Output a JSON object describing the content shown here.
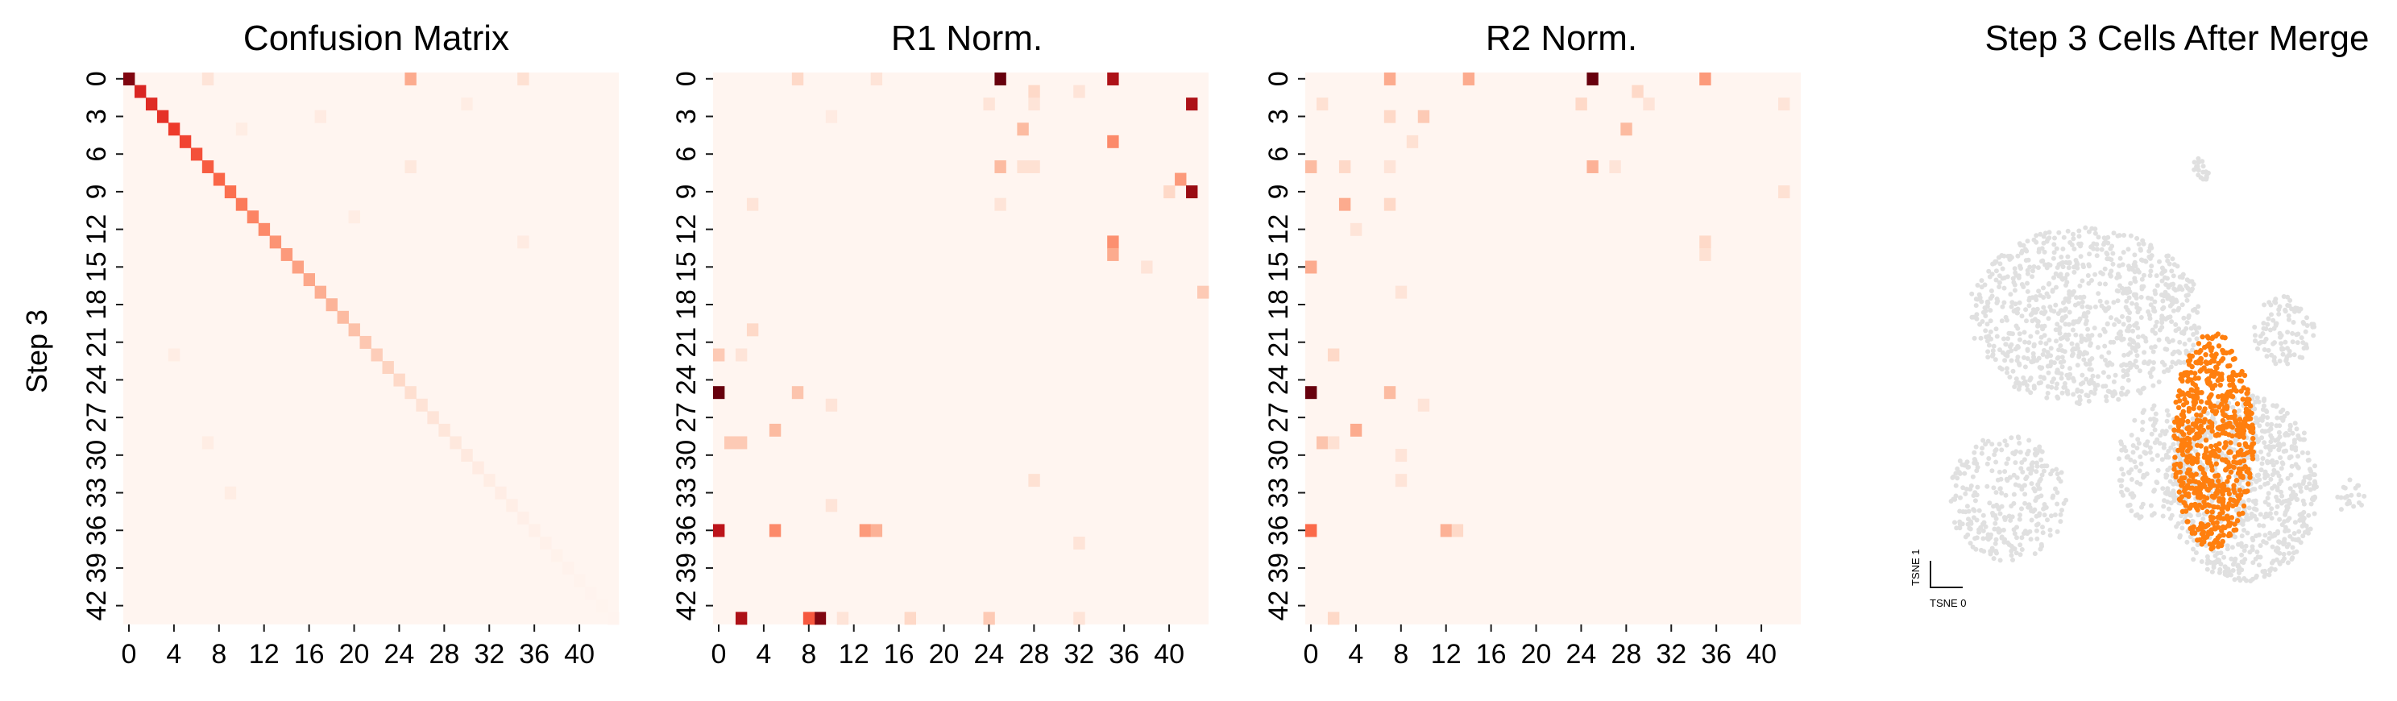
{
  "chart_data": [
    {
      "type": "heatmap",
      "title": "Confusion Matrix",
      "ylabel": "Step 3",
      "xlabel": "",
      "n_rows": 44,
      "n_cols": 44,
      "x_tick_labels": [
        "0",
        "4",
        "8",
        "12",
        "16",
        "20",
        "24",
        "28",
        "32",
        "36",
        "40"
      ],
      "y_tick_labels": [
        "0",
        "3",
        "6",
        "9",
        "12",
        "15",
        "18",
        "21",
        "24",
        "27",
        "30",
        "33",
        "36",
        "39",
        "42"
      ],
      "colormap": [
        "#fff5f0",
        "#fee0d2",
        "#fcbba1",
        "#fc9272",
        "#fb6a4a",
        "#ef3b2c",
        "#cb181d",
        "#a50f15",
        "#67000d"
      ],
      "cells": [
        [
          0,
          0,
          0.95
        ],
        [
          1,
          1,
          0.7
        ],
        [
          2,
          2,
          0.68
        ],
        [
          3,
          3,
          0.66
        ],
        [
          4,
          4,
          0.63
        ],
        [
          5,
          5,
          0.6
        ],
        [
          6,
          6,
          0.57
        ],
        [
          7,
          7,
          0.54
        ],
        [
          8,
          8,
          0.51
        ],
        [
          9,
          9,
          0.48
        ],
        [
          10,
          10,
          0.45
        ],
        [
          11,
          11,
          0.42
        ],
        [
          12,
          12,
          0.4
        ],
        [
          13,
          13,
          0.37
        ],
        [
          14,
          14,
          0.35
        ],
        [
          15,
          15,
          0.33
        ],
        [
          16,
          16,
          0.31
        ],
        [
          17,
          17,
          0.29
        ],
        [
          18,
          18,
          0.27
        ],
        [
          19,
          19,
          0.25
        ],
        [
          20,
          20,
          0.23
        ],
        [
          21,
          21,
          0.21
        ],
        [
          22,
          22,
          0.19
        ],
        [
          23,
          23,
          0.17
        ],
        [
          24,
          24,
          0.15
        ],
        [
          25,
          25,
          0.13
        ],
        [
          26,
          26,
          0.11
        ],
        [
          27,
          27,
          0.1
        ],
        [
          28,
          28,
          0.09
        ],
        [
          29,
          29,
          0.08
        ],
        [
          30,
          30,
          0.07
        ],
        [
          31,
          31,
          0.06
        ],
        [
          32,
          32,
          0.05
        ],
        [
          33,
          33,
          0.045
        ],
        [
          34,
          34,
          0.04
        ],
        [
          35,
          35,
          0.035
        ],
        [
          36,
          36,
          0.03
        ],
        [
          37,
          37,
          0.025
        ],
        [
          38,
          38,
          0.02
        ],
        [
          39,
          39,
          0.015
        ],
        [
          40,
          40,
          0.012
        ],
        [
          41,
          41,
          0.01
        ],
        [
          42,
          42,
          0.008
        ],
        [
          43,
          43,
          0.006
        ],
        [
          0,
          25,
          0.3
        ],
        [
          0,
          7,
          0.1
        ],
        [
          0,
          35,
          0.12
        ],
        [
          2,
          30,
          0.05
        ],
        [
          3,
          17,
          0.06
        ],
        [
          4,
          10,
          0.05
        ],
        [
          7,
          25,
          0.08
        ],
        [
          11,
          20,
          0.05
        ],
        [
          13,
          35,
          0.06
        ],
        [
          22,
          4,
          0.05
        ],
        [
          29,
          7,
          0.05
        ],
        [
          33,
          9,
          0.05
        ]
      ]
    },
    {
      "type": "heatmap",
      "title": "R1 Norm.",
      "n_rows": 44,
      "n_cols": 44,
      "x_tick_labels": [
        "0",
        "4",
        "8",
        "12",
        "16",
        "20",
        "24",
        "28",
        "32",
        "36",
        "40"
      ],
      "y_tick_labels": [
        "0",
        "3",
        "6",
        "9",
        "12",
        "15",
        "18",
        "21",
        "24",
        "27",
        "30",
        "33",
        "36",
        "39",
        "42"
      ],
      "cells": [
        [
          0,
          25,
          1.0
        ],
        [
          0,
          35,
          0.85
        ],
        [
          0,
          7,
          0.15
        ],
        [
          0,
          14,
          0.1
        ],
        [
          1,
          28,
          0.15
        ],
        [
          1,
          32,
          0.1
        ],
        [
          2,
          42,
          0.85
        ],
        [
          2,
          24,
          0.1
        ],
        [
          2,
          28,
          0.1
        ],
        [
          3,
          10,
          0.06
        ],
        [
          4,
          27,
          0.25
        ],
        [
          5,
          35,
          0.4
        ],
        [
          7,
          25,
          0.25
        ],
        [
          7,
          27,
          0.12
        ],
        [
          7,
          28,
          0.12
        ],
        [
          8,
          41,
          0.35
        ],
        [
          9,
          40,
          0.15
        ],
        [
          9,
          42,
          0.9
        ],
        [
          10,
          3,
          0.1
        ],
        [
          10,
          25,
          0.1
        ],
        [
          13,
          35,
          0.38
        ],
        [
          14,
          35,
          0.3
        ],
        [
          15,
          38,
          0.1
        ],
        [
          17,
          43,
          0.2
        ],
        [
          20,
          3,
          0.15
        ],
        [
          22,
          0,
          0.2
        ],
        [
          22,
          2,
          0.1
        ],
        [
          25,
          0,
          1.0
        ],
        [
          25,
          7,
          0.22
        ],
        [
          26,
          10,
          0.1
        ],
        [
          28,
          5,
          0.25
        ],
        [
          29,
          1,
          0.2
        ],
        [
          29,
          2,
          0.2
        ],
        [
          32,
          28,
          0.12
        ],
        [
          34,
          10,
          0.1
        ],
        [
          36,
          0,
          0.8
        ],
        [
          36,
          5,
          0.4
        ],
        [
          36,
          13,
          0.35
        ],
        [
          36,
          14,
          0.28
        ],
        [
          37,
          32,
          0.1
        ],
        [
          43,
          2,
          0.85
        ],
        [
          43,
          9,
          0.95
        ],
        [
          43,
          8,
          0.55
        ],
        [
          43,
          24,
          0.2
        ],
        [
          43,
          17,
          0.15
        ],
        [
          43,
          32,
          0.1
        ],
        [
          43,
          11,
          0.1
        ]
      ]
    },
    {
      "type": "heatmap",
      "title": "R2 Norm.",
      "n_rows": 44,
      "n_cols": 44,
      "x_tick_labels": [
        "0",
        "4",
        "8",
        "12",
        "16",
        "20",
        "24",
        "28",
        "32",
        "36",
        "40"
      ],
      "y_tick_labels": [
        "0",
        "3",
        "6",
        "9",
        "12",
        "15",
        "18",
        "21",
        "24",
        "27",
        "30",
        "33",
        "36",
        "39",
        "42"
      ],
      "cells": [
        [
          0,
          25,
          1.0
        ],
        [
          0,
          7,
          0.3
        ],
        [
          0,
          14,
          0.3
        ],
        [
          0,
          35,
          0.35
        ],
        [
          1,
          29,
          0.15
        ],
        [
          2,
          1,
          0.12
        ],
        [
          2,
          24,
          0.15
        ],
        [
          2,
          30,
          0.1
        ],
        [
          2,
          42,
          0.1
        ],
        [
          3,
          7,
          0.15
        ],
        [
          3,
          10,
          0.2
        ],
        [
          4,
          28,
          0.25
        ],
        [
          5,
          9,
          0.12
        ],
        [
          7,
          0,
          0.25
        ],
        [
          7,
          3,
          0.15
        ],
        [
          7,
          7,
          0.1
        ],
        [
          7,
          25,
          0.28
        ],
        [
          7,
          27,
          0.1
        ],
        [
          9,
          42,
          0.12
        ],
        [
          10,
          3,
          0.3
        ],
        [
          10,
          7,
          0.15
        ],
        [
          12,
          4,
          0.1
        ],
        [
          13,
          35,
          0.15
        ],
        [
          14,
          35,
          0.12
        ],
        [
          15,
          0,
          0.3
        ],
        [
          17,
          8,
          0.1
        ],
        [
          22,
          2,
          0.15
        ],
        [
          25,
          0,
          1.0
        ],
        [
          25,
          7,
          0.25
        ],
        [
          26,
          10,
          0.1
        ],
        [
          28,
          4,
          0.3
        ],
        [
          29,
          1,
          0.22
        ],
        [
          29,
          2,
          0.12
        ],
        [
          30,
          8,
          0.1
        ],
        [
          32,
          8,
          0.1
        ],
        [
          36,
          0,
          0.5
        ],
        [
          36,
          12,
          0.28
        ],
        [
          36,
          13,
          0.15
        ],
        [
          43,
          2,
          0.15
        ]
      ]
    },
    {
      "type": "scatter",
      "title": "Step 3 Cells After Merge",
      "xlabel": "TSNE 0",
      "ylabel": "TSNE 1",
      "background_color": "#e0e0e0",
      "highlight_color": "#ff7f0e",
      "clusters": [
        {
          "group": "other",
          "cx": 0.37,
          "cy": 0.43,
          "rx": 0.26,
          "ry": 0.18,
          "n": 900
        },
        {
          "group": "other",
          "cx": 0.81,
          "cy": 0.46,
          "rx": 0.07,
          "ry": 0.07,
          "n": 100
        },
        {
          "group": "other",
          "cx": 0.63,
          "cy": 0.13,
          "rx": 0.02,
          "ry": 0.025,
          "n": 20
        },
        {
          "group": "other",
          "cx": 0.2,
          "cy": 0.8,
          "rx": 0.13,
          "ry": 0.13,
          "n": 300
        },
        {
          "group": "other",
          "cx": 0.72,
          "cy": 0.78,
          "rx": 0.17,
          "ry": 0.19,
          "n": 800
        },
        {
          "group": "other",
          "cx": 0.52,
          "cy": 0.73,
          "rx": 0.08,
          "ry": 0.12,
          "n": 150
        },
        {
          "group": "other",
          "cx": 0.96,
          "cy": 0.8,
          "rx": 0.03,
          "ry": 0.04,
          "n": 20
        },
        {
          "group": "Step 3",
          "cx": 0.655,
          "cy": 0.93,
          "rx": 0.09,
          "ry": 0.22,
          "n": 700
        }
      ]
    }
  ]
}
